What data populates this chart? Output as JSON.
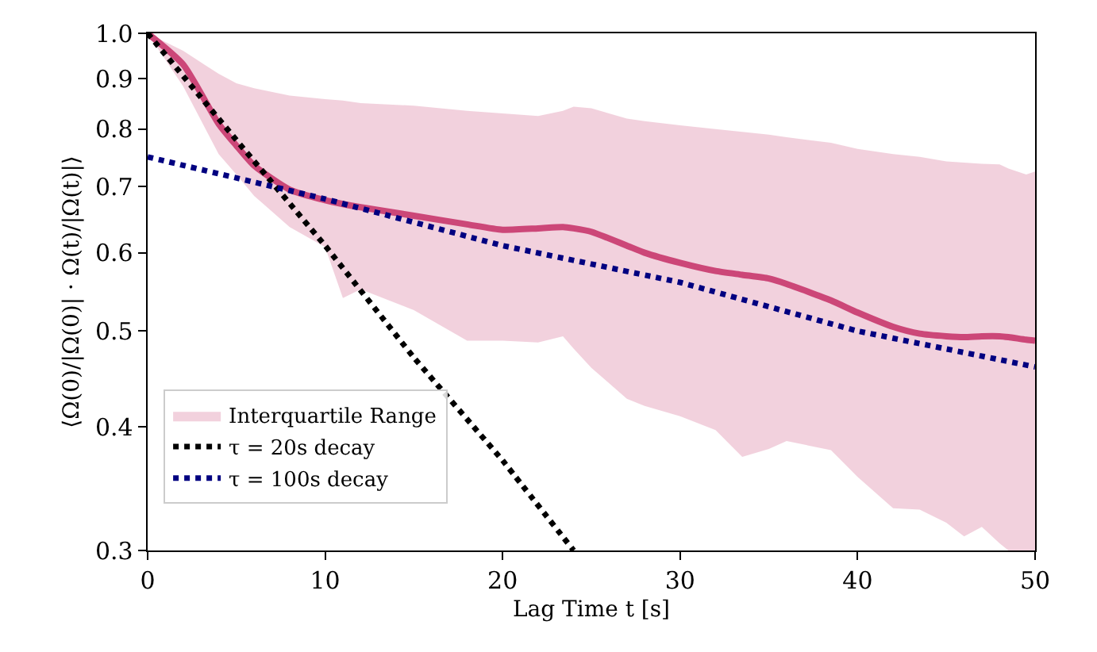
{
  "chart_data": {
    "type": "line",
    "xlabel": "Lag Time t [s]",
    "ylabel": "⟨Ω(0)/|Ω(0)| · Ω(t)/|Ω(t)|⟩",
    "log": "y",
    "legend": "bottom left",
    "marker": "none",
    "xlim": [
      0,
      50
    ],
    "xticks": [
      0,
      10,
      20,
      30,
      40,
      50
    ],
    "ylim": [
      0.3,
      1.0
    ],
    "yticks": [
      0.3,
      0.4,
      0.5,
      0.6,
      0.7,
      0.8,
      0.9,
      {
        "value": 1.0,
        "label": "1.0"
      }
    ],
    "series": [
      {
        "name": "Interquartile Range",
        "color": "#cc4778",
        "line_style": "solid",
        "x": [
          0,
          2,
          4,
          5,
          6,
          8,
          10,
          11,
          12,
          15,
          18,
          20,
          22,
          23.4,
          24,
          25,
          27,
          28,
          30,
          32,
          33.5,
          35,
          36,
          38.5,
          40,
          42,
          43.5,
          45,
          46,
          47,
          48,
          48.5,
          49.5,
          50
        ],
        "values": [
          1.0,
          0.93,
          0.81,
          0.77,
          0.735,
          0.695,
          0.678,
          0.672,
          0.667,
          0.654,
          0.641,
          0.633,
          0.635,
          0.637,
          0.635,
          0.63,
          0.61,
          0.6,
          0.586,
          0.575,
          0.57,
          0.565,
          0.558,
          0.537,
          0.522,
          0.505,
          0.497,
          0.494,
          0.493,
          0.494,
          0.494,
          0.493,
          0.49,
          0.489
        ],
        "upper": [
          1.0,
          0.96,
          0.91,
          0.89,
          0.88,
          0.865,
          0.858,
          0.855,
          0.85,
          0.845,
          0.835,
          0.83,
          0.825,
          0.835,
          0.843,
          0.84,
          0.82,
          0.815,
          0.807,
          0.8,
          0.795,
          0.79,
          0.785,
          0.775,
          0.764,
          0.755,
          0.75,
          0.742,
          0.74,
          0.738,
          0.737,
          0.73,
          0.72,
          0.725
        ],
        "lower": [
          1.0,
          0.884,
          0.755,
          0.72,
          0.685,
          0.637,
          0.608,
          0.54,
          0.551,
          0.525,
          0.489,
          0.489,
          0.487,
          0.494,
          0.48,
          0.459,
          0.427,
          0.42,
          0.41,
          0.397,
          0.373,
          0.38,
          0.387,
          0.379,
          0.356,
          0.331,
          0.33,
          0.32,
          0.31,
          0.317,
          0.305,
          0.3,
          0.3,
          0.3
        ]
      },
      {
        "name": "τ = 20s decay",
        "color": "#000000",
        "line_style": "dotted",
        "x": [
          0,
          5,
          10,
          15,
          20,
          24
        ],
        "values": [
          1.0,
          0.78,
          0.61,
          0.47,
          0.37,
          0.3
        ]
      },
      {
        "name": "τ = 100s decay",
        "color": "#000080",
        "line_style": "dotted",
        "x": [
          0,
          10,
          20,
          30,
          40,
          50
        ],
        "values": [
          0.75,
          0.68,
          0.61,
          0.56,
          0.5,
          0.46
        ]
      }
    ]
  }
}
